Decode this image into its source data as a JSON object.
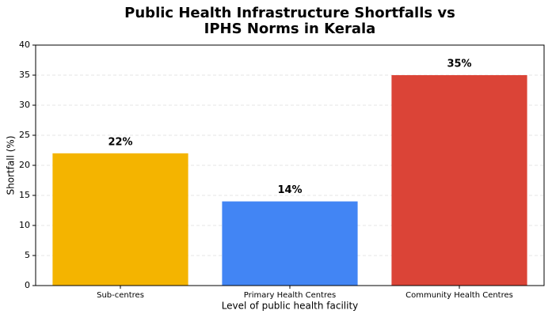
{
  "chart_data": {
    "type": "bar",
    "title": [
      "Public Health Infrastructure Shortfalls vs",
      "IPHS Norms in Kerala"
    ],
    "xlabel": "Level of public health facility",
    "ylabel": "Shortfall (%)",
    "categories": [
      "Sub-centres",
      "Primary Health Centres",
      "Community Health Centres"
    ],
    "values": [
      22,
      14,
      35
    ],
    "value_labels": [
      "22%",
      "14%",
      "35%"
    ],
    "colors": [
      "#f4b400",
      "#4285f4",
      "#db4437"
    ],
    "ylim": [
      0,
      40
    ],
    "yticks": [
      0,
      5,
      10,
      15,
      20,
      25,
      30,
      35,
      40
    ],
    "grid": true
  }
}
